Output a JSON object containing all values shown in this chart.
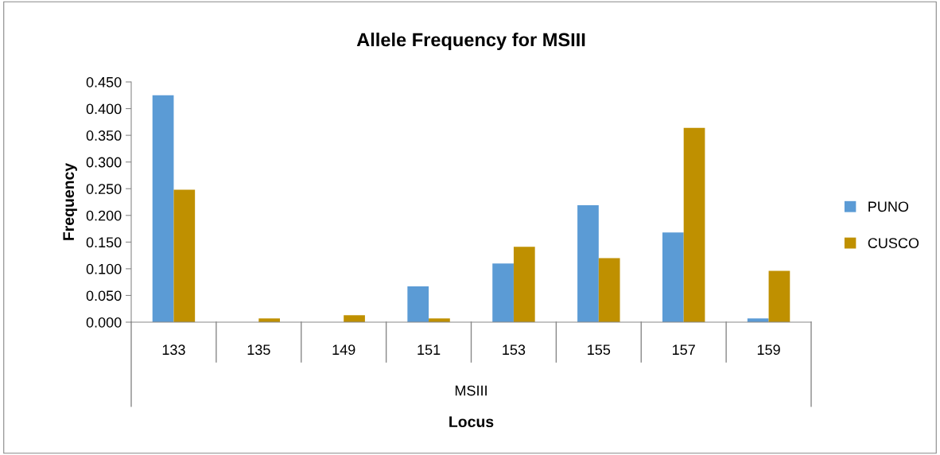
{
  "chart_data": {
    "type": "bar",
    "title": "Allele Frequency for MSIII",
    "xlabel": "Locus",
    "ylabel": "Frequency",
    "categories": [
      "133",
      "135",
      "149",
      "151",
      "153",
      "155",
      "157",
      "159"
    ],
    "series": [
      {
        "name": "PUNO",
        "color": "#5b9bd5",
        "values": [
          0.425,
          0,
          0,
          0.067,
          0.11,
          0.219,
          0.168,
          0.007
        ]
      },
      {
        "name": "CUSCO",
        "color": "#bf9000",
        "values": [
          0.248,
          0.007,
          0.013,
          0.007,
          0.141,
          0.12,
          0.364,
          0.096
        ]
      }
    ],
    "ylim": [
      0,
      0.45
    ],
    "yticks": [
      {
        "value": 0,
        "label": "0.000"
      },
      {
        "value": 0.05,
        "label": "0.050"
      },
      {
        "value": 0.1,
        "label": "0.100"
      },
      {
        "value": 0.15,
        "label": "0.150"
      },
      {
        "value": 0.2,
        "label": "0.200"
      },
      {
        "value": 0.25,
        "label": "0.250"
      },
      {
        "value": 0.3,
        "label": "0.300"
      },
      {
        "value": 0.35,
        "label": "0.350"
      },
      {
        "value": 0.4,
        "label": "0.400"
      },
      {
        "value": 0.45,
        "label": "0.450"
      }
    ],
    "annotations": [
      "MSIII"
    ],
    "grid": false,
    "legend": "right"
  }
}
